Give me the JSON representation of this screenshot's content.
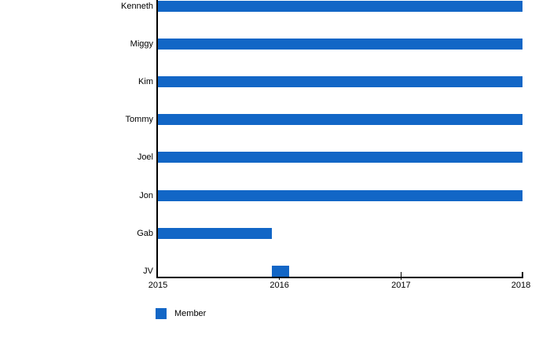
{
  "chart_data": {
    "type": "bar",
    "orientation": "horizontal",
    "title": "",
    "xlabel": "",
    "ylabel": "",
    "grid": false,
    "xlim": [
      2015,
      2018
    ],
    "x_ticks": [
      "2015",
      "2016",
      "2017",
      "2018"
    ],
    "categories": [
      "Kenneth",
      "Miggy",
      "Kim",
      "Tommy",
      "Joel",
      "Jon",
      "Gab",
      "JV"
    ],
    "series": [
      {
        "name": "Member",
        "color": "#1266C6",
        "data": [
          {
            "category": "Kenneth",
            "start": 2015,
            "end": 2018
          },
          {
            "category": "Miggy",
            "start": 2015,
            "end": 2018
          },
          {
            "category": "Kim",
            "start": 2015,
            "end": 2018
          },
          {
            "category": "Tommy",
            "start": 2015,
            "end": 2018
          },
          {
            "category": "Joel",
            "start": 2015,
            "end": 2018
          },
          {
            "category": "Jon",
            "start": 2015,
            "end": 2018
          },
          {
            "category": "Gab",
            "start": 2015,
            "end": 2015.94
          },
          {
            "category": "JV",
            "start": 2015.94,
            "end": 2016.08
          }
        ]
      }
    ],
    "legend": {
      "position": "bottom-left",
      "entries": [
        {
          "label": "Member",
          "color": "#1266C6"
        }
      ]
    },
    "axis_color": "#000000",
    "text_color": "#000000"
  }
}
